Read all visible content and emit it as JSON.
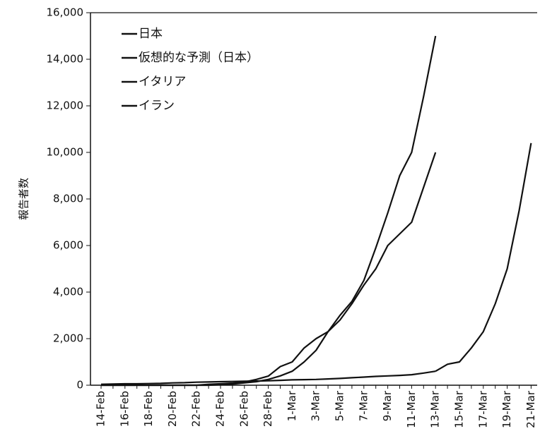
{
  "chart_data": {
    "type": "line",
    "y_label": "報告者数",
    "categories": [
      "14-Feb",
      null,
      "16-Feb",
      null,
      "18-Feb",
      null,
      "20-Feb",
      null,
      "22-Feb",
      null,
      "24-Feb",
      null,
      "26-Feb",
      null,
      "28-Feb",
      null,
      "1-Mar",
      null,
      "3-Mar",
      null,
      "5-Mar",
      null,
      "7-Mar",
      null,
      "9-Mar",
      null,
      "11-Mar",
      null,
      "13-Mar",
      null,
      "15-Mar",
      null,
      "17-Mar",
      null,
      "19-Mar",
      null,
      "21-Mar"
    ],
    "series": [
      {
        "name": "日本",
        "color": "#111111",
        "values": [
          40,
          50,
          60,
          60,
          70,
          80,
          100,
          110,
          130,
          140,
          150,
          160,
          170,
          180,
          190,
          210,
          230,
          240,
          250,
          270,
          290,
          320,
          350,
          380,
          400,
          420,
          450,
          520,
          600,
          null,
          null,
          null,
          null,
          null,
          null,
          null,
          null
        ]
      },
      {
        "name": "仮想的な予測（日本）",
        "color": "#111111",
        "values": [
          null,
          null,
          null,
          null,
          null,
          null,
          null,
          null,
          null,
          null,
          null,
          null,
          null,
          null,
          null,
          null,
          null,
          null,
          null,
          null,
          null,
          null,
          null,
          null,
          null,
          null,
          null,
          null,
          600,
          900,
          1000,
          1600,
          2300,
          3500,
          5000,
          7500,
          10400
        ]
      },
      {
        "name": "イタリア",
        "color": "#111111",
        "values": [
          0,
          0,
          0,
          0,
          0,
          0,
          0,
          0,
          0,
          0,
          20,
          50,
          100,
          150,
          250,
          400,
          600,
          1000,
          1500,
          2300,
          3000,
          3600,
          4500,
          5900,
          7400,
          9000,
          10000,
          12400,
          15000,
          null,
          null,
          null,
          null,
          null,
          null,
          null,
          null
        ]
      },
      {
        "name": "イラン",
        "color": "#111111",
        "values": [
          0,
          0,
          0,
          0,
          0,
          0,
          0,
          0,
          0,
          40,
          60,
          90,
          140,
          250,
          390,
          800,
          1000,
          1600,
          2000,
          2300,
          2800,
          3500,
          4300,
          5000,
          6000,
          6500,
          7000,
          8500,
          10000,
          null,
          null,
          null,
          null,
          null,
          null,
          null,
          null
        ]
      }
    ],
    "ylim": [
      0,
      16000
    ],
    "yticks": [
      0,
      {
        "value": 2000,
        "label": "2,000"
      },
      {
        "value": 4000,
        "label": "4,000"
      },
      {
        "value": 6000,
        "label": "6,000"
      },
      {
        "value": 8000,
        "label": "8,000"
      },
      {
        "value": 10000,
        "label": "10,000"
      },
      {
        "value": 12000,
        "label": "12,000"
      },
      {
        "value": 14000,
        "label": "14,000"
      },
      {
        "value": 16000,
        "label": "16,000"
      }
    ],
    "legend": "upper-left"
  }
}
